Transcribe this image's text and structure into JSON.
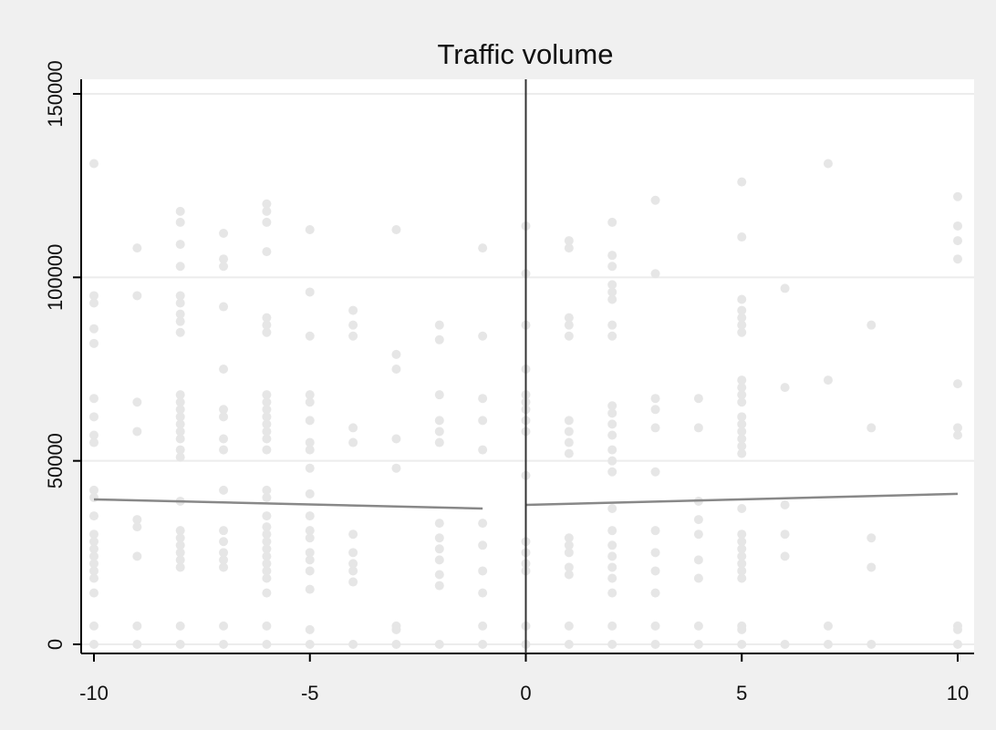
{
  "chart_data": {
    "type": "scatter",
    "title": "Traffic volume",
    "xlabel": "",
    "ylabel": "",
    "xlim": [
      -10,
      10
    ],
    "ylim": [
      0,
      150000
    ],
    "x_ticks": [
      "-10",
      "-5",
      "0",
      "5",
      "10"
    ],
    "y_ticks": [
      "0",
      "50000",
      "100000",
      "150000"
    ],
    "grid": "horizontal",
    "cutoff_x": 0,
    "colors": {
      "background": "#f0f0f0",
      "plot_area": "#ffffff",
      "points": "#e6e6e6",
      "fit_line": "#888888",
      "cutoff_line": "#333333",
      "grid": "#ececec"
    },
    "fit_left": {
      "x": [
        -10,
        -1
      ],
      "y": [
        39500,
        37000
      ]
    },
    "fit_right": {
      "x": [
        0,
        10
      ],
      "y": [
        38000,
        41000
      ]
    },
    "scatter_points": [
      {
        "x": -10,
        "y": [
          0,
          5000,
          14000,
          18000,
          20000,
          22000,
          24000,
          26000,
          28000,
          30000,
          35000,
          40000,
          42000,
          55000,
          57000,
          62000,
          67000,
          82000,
          86000,
          93000,
          95000,
          131000
        ]
      },
      {
        "x": -9,
        "y": [
          0,
          5000,
          24000,
          32000,
          34000,
          58000,
          66000,
          95000,
          108000
        ]
      },
      {
        "x": -8,
        "y": [
          0,
          5000,
          21000,
          23000,
          25000,
          27000,
          29000,
          31000,
          39000,
          51000,
          53000,
          56000,
          58000,
          60000,
          62000,
          64000,
          66000,
          68000,
          85000,
          88000,
          90000,
          93000,
          95000,
          103000,
          109000,
          115000,
          118000
        ]
      },
      {
        "x": -7,
        "y": [
          0,
          5000,
          21000,
          23000,
          25000,
          28000,
          31000,
          42000,
          53000,
          56000,
          62000,
          64000,
          75000,
          92000,
          103000,
          105000,
          112000
        ]
      },
      {
        "x": -6,
        "y": [
          0,
          5000,
          14000,
          18000,
          20000,
          22000,
          24000,
          26000,
          28000,
          30000,
          32000,
          35000,
          40000,
          42000,
          53000,
          56000,
          58000,
          60000,
          62000,
          64000,
          66000,
          68000,
          85000,
          87000,
          89000,
          107000,
          115000,
          118000,
          120000
        ]
      },
      {
        "x": -5,
        "y": [
          0,
          4000,
          15000,
          20000,
          23000,
          25000,
          29000,
          31000,
          35000,
          41000,
          48000,
          53000,
          55000,
          61000,
          66000,
          68000,
          84000,
          96000,
          113000
        ]
      },
      {
        "x": -4,
        "y": [
          0,
          17000,
          20000,
          22000,
          25000,
          30000,
          55000,
          59000,
          84000,
          87000,
          91000
        ]
      },
      {
        "x": -3,
        "y": [
          0,
          4000,
          5000,
          48000,
          56000,
          75000,
          79000,
          113000
        ]
      },
      {
        "x": -2,
        "y": [
          0,
          16000,
          19000,
          23000,
          26000,
          29000,
          33000,
          55000,
          58000,
          61000,
          68000,
          83000,
          87000
        ]
      },
      {
        "x": -1,
        "y": [
          0,
          5000,
          14000,
          20000,
          27000,
          33000,
          53000,
          61000,
          67000,
          84000,
          108000
        ]
      },
      {
        "x": 0,
        "y": [
          0,
          5000,
          20000,
          22000,
          25000,
          28000,
          46000,
          58000,
          61000,
          64000,
          66000,
          68000,
          75000,
          87000,
          101000,
          114000
        ]
      },
      {
        "x": 1,
        "y": [
          0,
          5000,
          19000,
          21000,
          25000,
          27000,
          29000,
          52000,
          55000,
          58000,
          61000,
          84000,
          87000,
          89000,
          108000,
          110000
        ]
      },
      {
        "x": 2,
        "y": [
          0,
          5000,
          14000,
          18000,
          21000,
          24000,
          27000,
          31000,
          37000,
          47000,
          50000,
          53000,
          57000,
          60000,
          63000,
          65000,
          84000,
          87000,
          94000,
          96000,
          98000,
          103000,
          106000,
          115000
        ]
      },
      {
        "x": 3,
        "y": [
          0,
          5000,
          14000,
          20000,
          25000,
          31000,
          47000,
          59000,
          64000,
          67000,
          101000,
          121000
        ]
      },
      {
        "x": 4,
        "y": [
          0,
          5000,
          18000,
          23000,
          30000,
          34000,
          39000,
          59000,
          67000
        ]
      },
      {
        "x": 5,
        "y": [
          0,
          4000,
          5000,
          18000,
          20000,
          22000,
          24000,
          26000,
          28000,
          30000,
          37000,
          52000,
          54000,
          56000,
          58000,
          60000,
          62000,
          66000,
          68000,
          70000,
          72000,
          85000,
          87000,
          89000,
          91000,
          94000,
          111000,
          126000
        ]
      },
      {
        "x": 6,
        "y": [
          0,
          24000,
          30000,
          38000,
          70000,
          97000
        ]
      },
      {
        "x": 7,
        "y": [
          0,
          5000,
          72000,
          131000
        ]
      },
      {
        "x": 8,
        "y": [
          0,
          21000,
          29000,
          59000,
          87000
        ]
      },
      {
        "x": 10,
        "y": [
          0,
          4000,
          5000,
          57000,
          59000,
          71000,
          105000,
          110000,
          114000,
          122000
        ]
      }
    ]
  }
}
